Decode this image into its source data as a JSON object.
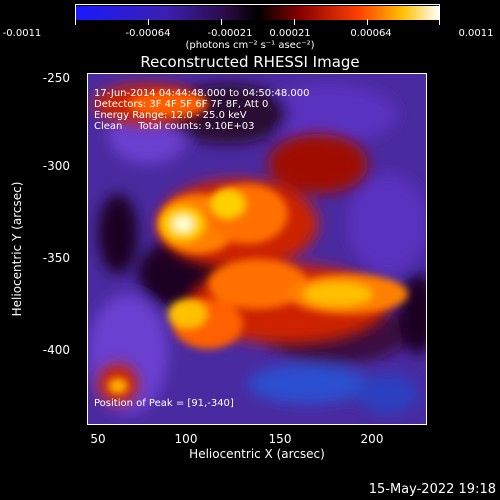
{
  "colorbar": {
    "ticks": [
      "-0.0011",
      "-0.00064",
      "-0.00021",
      "0.00021",
      "0.00064",
      "0.0011"
    ],
    "units": "(photons cm⁻² s⁻¹ asec⁻²)"
  },
  "title": "Reconstructed RHESSI Image",
  "info": {
    "time": "17-Jun-2014 04:44:48.000 to 04:50:48.000",
    "detectors": "Detectors: 3F 4F 5F 6F 7F 8F, Att 0",
    "energy": "Energy Range: 12.0 - 25.0 keV",
    "clean": "Clean     Total counts: 9.10E+03",
    "peak": "Position of Peak = [91,-340]"
  },
  "axes": {
    "xlabel": "Heliocentric X (arcsec)",
    "ylabel": "Heliocentric Y (arcsec)",
    "xticks": [
      "50",
      "100",
      "150",
      "200"
    ],
    "yticks": [
      "-250",
      "-300",
      "-350",
      "-400"
    ]
  },
  "footer_date": "15-May-2022 19:18",
  "colors": {
    "background": "#000000",
    "text": "#ffffff"
  }
}
